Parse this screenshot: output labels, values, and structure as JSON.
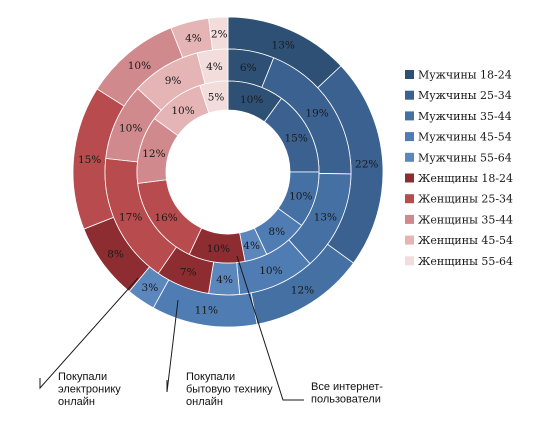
{
  "chart_data": {
    "type": "pie",
    "subtype": "nested-donut",
    "legend_position": "right",
    "categories": [
      "Мужчины 18-24",
      "Мужчины 25-34",
      "Мужчины 35-44",
      "Мужчины 45-54",
      "Мужчины 55-64",
      "Женщины 18-24",
      "Женщины 25-34",
      "Женщины 35-44",
      "Женщины 45-54",
      "Женщины 55-64"
    ],
    "colors": [
      "#2f5075",
      "#3a6190",
      "#4470a4",
      "#4f7cb2",
      "#5b87bd",
      "#8e2d31",
      "#b84b4d",
      "#d0898c",
      "#e5b5b6",
      "#f2dcdc"
    ],
    "series": [
      {
        "name": "Покупали электронику онлайн",
        "values": [
          13,
          22,
          12,
          11,
          3,
          8,
          15,
          10,
          4,
          2
        ],
        "labels": [
          "13%",
          "22%",
          "12%",
          "11%",
          "3%",
          "8%",
          "15%",
          "10%",
          "4%",
          "2%"
        ]
      },
      {
        "name": "Покупали бытовую технику онлайн",
        "values": [
          6,
          19,
          13,
          10,
          4,
          7,
          17,
          10,
          9,
          4
        ],
        "labels": [
          "6%",
          "19%",
          "13%",
          "10%",
          "4%",
          "7%",
          "17%",
          "10%",
          "9%",
          "4%"
        ]
      },
      {
        "name": "Все интернет-пользователи",
        "values": [
          10,
          15,
          10,
          8,
          4,
          10,
          16,
          12,
          10,
          5
        ],
        "labels": [
          "10%",
          "15%",
          "10%",
          "8%",
          "4%",
          "10%",
          "16%",
          "12%",
          "10%",
          "5%"
        ]
      }
    ],
    "callouts": [
      {
        "lines": [
          "Покупали",
          "электронику",
          "онлайн"
        ]
      },
      {
        "lines": [
          "Покупали",
          "бытовую технику",
          "онлайн"
        ]
      },
      {
        "lines": [
          "Все интернет-",
          "пользователи"
        ]
      }
    ]
  }
}
